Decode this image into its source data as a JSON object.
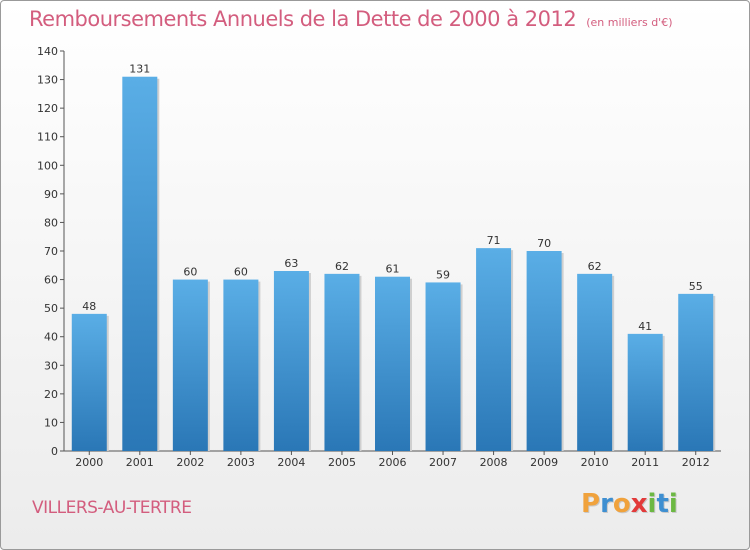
{
  "title": "Remboursements Annuels de la Dette de 2000 à 2012",
  "subtitle": "(en milliers d'€)",
  "commune": "VILLERS-AU-TERTRE",
  "logo": {
    "letters": [
      "P",
      "r",
      "o",
      "x",
      "i",
      "t",
      "i"
    ],
    "colors": [
      "#f0a23c",
      "#3e8fd1",
      "#f0a23c",
      "#e23a3a",
      "#6cb843",
      "#3e8fd1",
      "#6cb843"
    ]
  },
  "colors": {
    "title": "#d35d7e",
    "bar_top": "#5aaee6",
    "bar_bottom": "#2a77b6"
  },
  "chart_data": {
    "type": "bar",
    "title": "Remboursements Annuels de la Dette de 2000 à 2012",
    "subtitle": "(en milliers d'€)",
    "xlabel": "",
    "ylabel": "",
    "categories": [
      "2000",
      "2001",
      "2002",
      "2003",
      "2004",
      "2005",
      "2006",
      "2007",
      "2008",
      "2009",
      "2010",
      "2011",
      "2012"
    ],
    "values": [
      48,
      131,
      60,
      60,
      63,
      62,
      61,
      59,
      71,
      70,
      62,
      41,
      55
    ],
    "ylim": [
      0,
      140
    ],
    "yticks": [
      0,
      10,
      20,
      30,
      40,
      50,
      60,
      70,
      80,
      90,
      100,
      110,
      120,
      130,
      140
    ],
    "grid": false,
    "data_labels": true
  }
}
